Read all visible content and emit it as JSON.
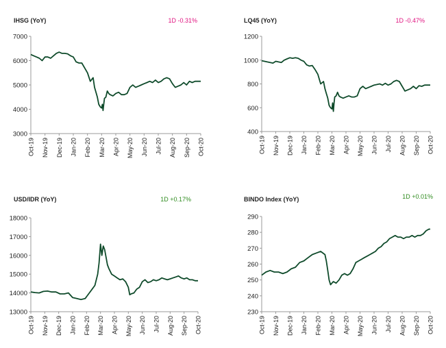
{
  "chart_data": [
    {
      "type": "line",
      "title": "IHSG (YoY)",
      "change_label": "1D -0.31%",
      "change_color": "#e0117f",
      "line_color": "#0e4a2a",
      "x_ticks": [
        "Oct-19",
        "Nov-19",
        "Dec-19",
        "Jan-20",
        "Feb-20",
        "Mar-20",
        "Apr-20",
        "May-20",
        "Jun-20",
        "Jul-20",
        "Aug-20",
        "Sep-20",
        "Oct-20"
      ],
      "y_ticks": [
        "3000",
        "4000",
        "5000",
        "6000",
        "7000"
      ],
      "ylim": [
        3000,
        7000
      ],
      "series": [
        {
          "x": [
            0,
            0.2,
            0.4,
            0.6,
            0.8,
            1.0,
            1.2,
            1.4,
            1.6,
            1.8,
            2.0,
            2.2,
            2.4,
            2.6,
            2.8,
            3.0,
            3.2,
            3.4,
            3.6,
            3.8,
            4.0,
            4.2,
            4.4,
            4.5,
            4.6,
            4.7,
            4.8,
            4.9,
            5.0,
            5.05,
            5.1,
            5.15,
            5.2,
            5.3,
            5.4,
            5.5,
            5.6,
            5.8,
            6.0,
            6.2,
            6.4,
            6.6,
            6.8,
            7.0,
            7.2,
            7.4,
            7.6,
            7.8,
            8.0,
            8.2,
            8.4,
            8.6,
            8.8,
            9.0,
            9.2,
            9.4,
            9.6,
            9.8,
            10.0,
            10.2,
            10.4,
            10.6,
            10.8,
            11.0,
            11.2,
            11.4,
            11.6,
            11.8,
            12.0
          ],
          "values": [
            6250,
            6200,
            6150,
            6100,
            6000,
            6150,
            6150,
            6100,
            6200,
            6300,
            6350,
            6300,
            6300,
            6280,
            6200,
            6150,
            5950,
            5900,
            5900,
            5700,
            5500,
            5150,
            5300,
            4900,
            4700,
            4500,
            4200,
            4100,
            4050,
            4200,
            3950,
            4200,
            4450,
            4500,
            4750,
            4650,
            4600,
            4550,
            4650,
            4700,
            4600,
            4600,
            4650,
            4900,
            5000,
            4900,
            4950,
            5000,
            5050,
            5100,
            5150,
            5100,
            5200,
            5100,
            5150,
            5250,
            5300,
            5250,
            5050,
            4900,
            4950,
            5000,
            5100,
            5000,
            5150,
            5100,
            5150,
            5150,
            5150
          ]
        }
      ]
    },
    {
      "type": "line",
      "title": "LQ45 (YoY)",
      "change_label": "1D -0.47%",
      "change_color": "#e0117f",
      "line_color": "#0e4a2a",
      "x_ticks": [
        "Oct-19",
        "Nov-19",
        "Dec-19",
        "Jan-20",
        "Feb-20",
        "Mar-20",
        "Apr-20",
        "May-20",
        "Jun-20",
        "Jul-20",
        "Aug-20",
        "Sep-20",
        "Oct-20"
      ],
      "y_ticks": [
        "400",
        "600",
        "800",
        "1000",
        "1200"
      ],
      "ylim": [
        400,
        1200
      ],
      "series": [
        {
          "x": [
            0,
            0.2,
            0.4,
            0.6,
            0.8,
            1.0,
            1.2,
            1.4,
            1.6,
            1.8,
            2.0,
            2.2,
            2.4,
            2.6,
            2.8,
            3.0,
            3.2,
            3.4,
            3.6,
            3.8,
            4.0,
            4.2,
            4.4,
            4.5,
            4.6,
            4.7,
            4.8,
            4.9,
            5.0,
            5.05,
            5.1,
            5.15,
            5.2,
            5.3,
            5.4,
            5.5,
            5.6,
            5.8,
            6.0,
            6.2,
            6.4,
            6.6,
            6.8,
            7.0,
            7.2,
            7.4,
            7.6,
            7.8,
            8.0,
            8.2,
            8.4,
            8.6,
            8.8,
            9.0,
            9.2,
            9.4,
            9.6,
            9.8,
            10.0,
            10.2,
            10.4,
            10.6,
            10.8,
            11.0,
            11.2,
            11.4,
            11.6,
            11.8,
            12.0
          ],
          "values": [
            995,
            990,
            985,
            980,
            975,
            990,
            985,
            980,
            1000,
            1010,
            1020,
            1015,
            1020,
            1015,
            1000,
            990,
            960,
            950,
            955,
            920,
            880,
            800,
            820,
            760,
            720,
            680,
            620,
            600,
            590,
            640,
            570,
            640,
            690,
            700,
            730,
            700,
            690,
            680,
            690,
            700,
            690,
            690,
            700,
            760,
            780,
            760,
            770,
            780,
            790,
            795,
            800,
            790,
            805,
            790,
            800,
            820,
            830,
            820,
            780,
            740,
            750,
            760,
            780,
            760,
            785,
            780,
            790,
            790,
            790
          ]
        }
      ]
    },
    {
      "type": "line",
      "title": "USD/IDR  (YoY)",
      "change_label": "1D +0.17%",
      "change_color": "#2e8b1e",
      "line_color": "#0e4a2a",
      "x_ticks": [
        "Oct-19",
        "Nov-19",
        "Dec-19",
        "Jan-20",
        "Feb-20",
        "Mar-20",
        "Apr-20",
        "May-20",
        "Jun-20",
        "Jul-20",
        "Aug-20",
        "Sep-20",
        "Oct-20"
      ],
      "y_ticks": [
        "13000",
        "14000",
        "15000",
        "16000",
        "17000",
        "18000"
      ],
      "ylim": [
        13000,
        18000
      ],
      "series": [
        {
          "x": [
            0,
            0.3,
            0.6,
            0.9,
            1.2,
            1.5,
            1.8,
            2.1,
            2.4,
            2.7,
            3.0,
            3.3,
            3.6,
            3.9,
            4.2,
            4.4,
            4.6,
            4.8,
            4.9,
            5.0,
            5.1,
            5.2,
            5.3,
            5.4,
            5.5,
            5.6,
            5.8,
            6.0,
            6.2,
            6.4,
            6.6,
            6.8,
            7.0,
            7.1,
            7.2,
            7.4,
            7.6,
            7.8,
            8.0,
            8.2,
            8.4,
            8.6,
            8.8,
            9.0,
            9.2,
            9.4,
            9.6,
            9.8,
            10.0,
            10.2,
            10.4,
            10.6,
            10.8,
            11.0,
            11.2,
            11.4,
            11.6,
            11.8,
            12.0
          ],
          "values": [
            14050,
            14020,
            14000,
            14080,
            14100,
            14050,
            14050,
            13950,
            13950,
            14000,
            13750,
            13700,
            13650,
            13700,
            14000,
            14200,
            14400,
            15000,
            15600,
            16600,
            16000,
            16500,
            16300,
            15900,
            15500,
            15300,
            15000,
            14900,
            14800,
            14700,
            14750,
            14600,
            14300,
            13900,
            13950,
            14000,
            14200,
            14300,
            14600,
            14700,
            14550,
            14600,
            14700,
            14650,
            14700,
            14800,
            14750,
            14700,
            14750,
            14800,
            14850,
            14900,
            14800,
            14750,
            14800,
            14700,
            14700,
            14650,
            14650
          ]
        }
      ]
    },
    {
      "type": "line",
      "title": "BINDO Index (YoY)",
      "change_label": "1D +0.01%",
      "change_color": "#2e8b1e",
      "line_color": "#0e4a2a",
      "x_ticks": [
        "Oct-19",
        "Nov-19",
        "Dec-19",
        "Jan-20",
        "Feb-20",
        "Mar-20",
        "Apr-20",
        "May-20",
        "Jun-20",
        "Jul-20",
        "Aug-20",
        "Sep-20",
        "Oct-20"
      ],
      "y_ticks": [
        "230",
        "240",
        "250",
        "260",
        "270",
        "280",
        "290"
      ],
      "ylim": [
        230,
        290
      ],
      "series": [
        {
          "x": [
            0,
            0.3,
            0.6,
            0.9,
            1.2,
            1.5,
            1.8,
            2.1,
            2.4,
            2.7,
            3.0,
            3.3,
            3.6,
            3.9,
            4.2,
            4.5,
            4.6,
            4.7,
            4.8,
            4.9,
            5.0,
            5.1,
            5.3,
            5.5,
            5.7,
            5.9,
            6.1,
            6.3,
            6.5,
            6.7,
            6.9,
            7.1,
            7.3,
            7.5,
            7.7,
            7.9,
            8.1,
            8.3,
            8.5,
            8.7,
            8.9,
            9.1,
            9.3,
            9.5,
            9.7,
            9.9,
            10.1,
            10.3,
            10.5,
            10.7,
            10.9,
            11.1,
            11.3,
            11.5,
            11.7,
            11.9,
            12.0
          ],
          "values": [
            253,
            255,
            256,
            255,
            255,
            254,
            255,
            257,
            258,
            261,
            262,
            264,
            266,
            267,
            268,
            266,
            262,
            256,
            250,
            247,
            248,
            249,
            248,
            250,
            253,
            254,
            253,
            254,
            257,
            261,
            262,
            263,
            264,
            265,
            266,
            267,
            268,
            270,
            271,
            273,
            274,
            276,
            277,
            278,
            277,
            277,
            276,
            277,
            277,
            278,
            277,
            278,
            278,
            279,
            281,
            282,
            282
          ]
        }
      ]
    }
  ]
}
